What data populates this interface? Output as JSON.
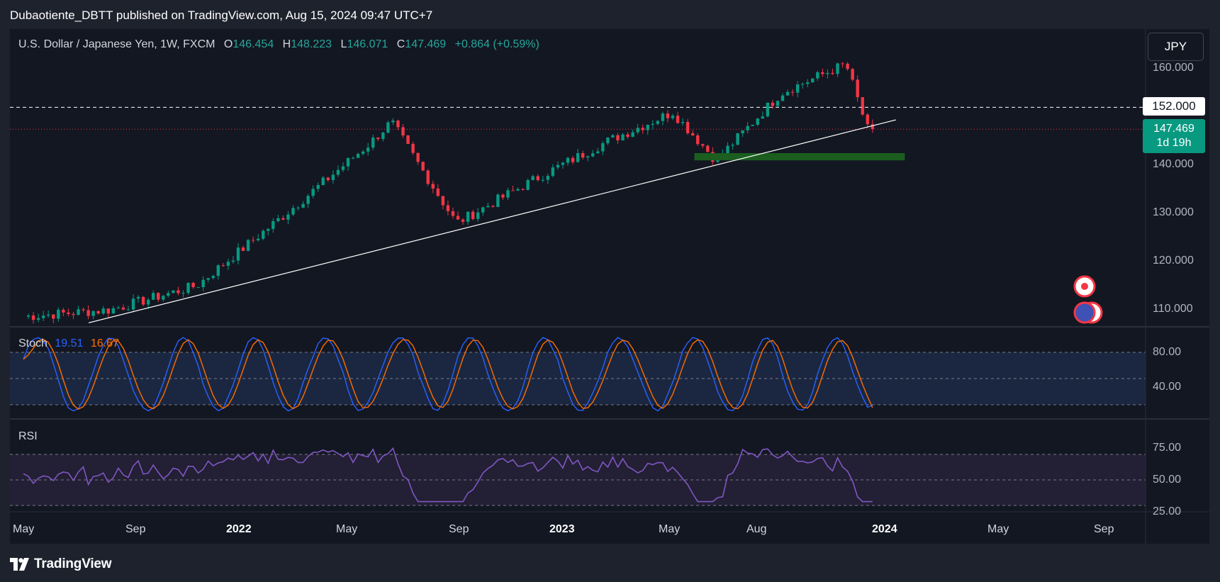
{
  "header": {
    "published_text": "Dubaotiente_DBTT published on TradingView.com, Aug 15, 2024 09:47 UTC+7"
  },
  "legend": {
    "title": "U.S. Dollar / Japanese Yen, 1W, FXCM",
    "o_key": "O",
    "o_val": "146.454",
    "h_key": "H",
    "h_val": "148.223",
    "l_key": "L",
    "l_val": "146.071",
    "c_key": "C",
    "c_val": "147.469",
    "change": "+0.864 (+0.59%)"
  },
  "currency_button": "JPY",
  "price_axis": [
    "160.000",
    "140.000",
    "130.000",
    "120.000",
    "110.000"
  ],
  "tags": {
    "level": "152.000",
    "last_price": "147.469",
    "countdown": "1d 19h"
  },
  "stoch": {
    "name": "Stoch",
    "k_value": "19.51",
    "d_value": "16.67",
    "axis": [
      "80.00",
      "40.00"
    ]
  },
  "rsi": {
    "name": "RSI",
    "axis": [
      "75.00",
      "50.00",
      "25.00"
    ]
  },
  "time_axis": [
    {
      "label": "May",
      "bold": false
    },
    {
      "label": "Sep",
      "bold": false
    },
    {
      "label": "2022",
      "bold": true
    },
    {
      "label": "May",
      "bold": false
    },
    {
      "label": "Sep",
      "bold": false
    },
    {
      "label": "2023",
      "bold": true
    },
    {
      "label": "May",
      "bold": false
    },
    {
      "label": "Aug",
      "bold": false
    },
    {
      "label": "2024",
      "bold": true
    },
    {
      "label": "May",
      "bold": false
    },
    {
      "label": "Sep",
      "bold": false
    }
  ],
  "footer": {
    "brand": "TradingView"
  },
  "colors": {
    "up": "#089981",
    "down": "#f23645",
    "stoch_k": "#2962ff",
    "stoch_d": "#ff6d00",
    "rsi": "#7e57c2",
    "support_zone": "#1b5e20"
  },
  "chart_data": [
    {
      "type": "candlestick",
      "title": "U.S. Dollar / Japanese Yen, 1W, FXCM",
      "unit": "JPY",
      "x_range": [
        "2021-05",
        "2024-08"
      ],
      "ylim": [
        107,
        163
      ],
      "key_points": [
        {
          "date": "2021-05",
          "close": 108.6
        },
        {
          "date": "2021-09",
          "close": 110.0
        },
        {
          "date": "2022-01",
          "close": 115.0
        },
        {
          "date": "2022-05",
          "close": 129.5
        },
        {
          "date": "2022-09",
          "close": 144.5
        },
        {
          "date": "2022-10",
          "close": 149.0
        },
        {
          "date": "2023-01",
          "close": 128.0
        },
        {
          "date": "2023-05",
          "close": 138.0
        },
        {
          "date": "2023-08",
          "close": 145.0
        },
        {
          "date": "2023-11",
          "close": 151.0
        },
        {
          "date": "2024-01",
          "close": 141.0
        },
        {
          "date": "2024-04",
          "close": 155.0
        },
        {
          "date": "2024-07",
          "close": 161.0
        },
        {
          "date": "2024-08",
          "close": 147.469
        }
      ],
      "horizontal_levels": [
        152.0,
        147.469
      ],
      "support_zone": [
        141.0,
        142.5
      ]
    },
    {
      "type": "line",
      "title": "Stoch",
      "ylim": [
        0,
        100
      ],
      "bands": [
        20,
        50,
        80
      ],
      "series": [
        {
          "name": "%K",
          "last": 19.51
        },
        {
          "name": "%D",
          "last": 16.67
        }
      ]
    },
    {
      "type": "line",
      "title": "RSI",
      "ylim": [
        20,
        90
      ],
      "bands": [
        30,
        50,
        70
      ]
    }
  ]
}
